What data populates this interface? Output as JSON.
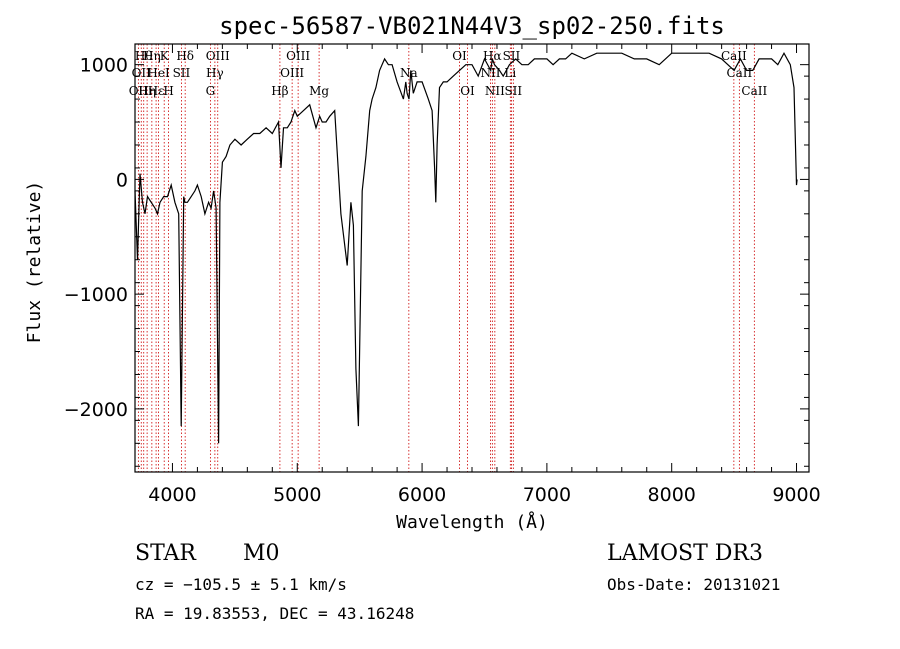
{
  "chart_data": {
    "type": "line",
    "title": "spec-56587-VB021N44V3_sp02-250.fits",
    "xlabel": "Wavelength (Å)",
    "ylabel": "Flux (relative)",
    "xlim": [
      3700,
      9100
    ],
    "ylim": [
      -2550,
      1180
    ],
    "xticks": [
      4000,
      5000,
      6000,
      7000,
      8000,
      9000
    ],
    "yticks": [
      -2000,
      -1000,
      0,
      1000
    ],
    "grid": false,
    "series": [
      {
        "name": "flux",
        "x": [
          3700,
          3720,
          3740,
          3760,
          3780,
          3800,
          3830,
          3860,
          3880,
          3900,
          3930,
          3960,
          3990,
          4020,
          4050,
          4070,
          4090,
          4100,
          4120,
          4150,
          4180,
          4200,
          4230,
          4260,
          4290,
          4310,
          4330,
          4350,
          4370,
          4380,
          4400,
          4430,
          4460,
          4500,
          4550,
          4600,
          4650,
          4700,
          4750,
          4800,
          4850,
          4870,
          4890,
          4920,
          4950,
          4980,
          5000,
          5050,
          5100,
          5150,
          5180,
          5200,
          5230,
          5260,
          5300,
          5350,
          5400,
          5430,
          5450,
          5470,
          5490,
          5520,
          5550,
          5580,
          5600,
          5630,
          5660,
          5700,
          5730,
          5760,
          5800,
          5850,
          5870,
          5880,
          5895,
          5910,
          5930,
          5960,
          6000,
          6050,
          6080,
          6100,
          6110,
          6120,
          6140,
          6170,
          6200,
          6250,
          6300,
          6350,
          6400,
          6450,
          6500,
          6550,
          6563,
          6580,
          6620,
          6650,
          6700,
          6750,
          6800,
          6850,
          6900,
          6950,
          7000,
          7050,
          7100,
          7150,
          7200,
          7300,
          7400,
          7500,
          7600,
          7700,
          7800,
          7900,
          8000,
          8100,
          8200,
          8300,
          8400,
          8500,
          8550,
          8600,
          8650,
          8700,
          8750,
          8800,
          8850,
          8900,
          8950,
          8980,
          9000,
          9005
        ],
        "values": [
          -100,
          -700,
          50,
          -200,
          -300,
          -150,
          -200,
          -250,
          -300,
          -200,
          -150,
          -150,
          -50,
          -200,
          -300,
          -2150,
          -150,
          -200,
          -200,
          -150,
          -100,
          -50,
          -150,
          -300,
          -200,
          -250,
          -100,
          -250,
          -2300,
          -200,
          150,
          200,
          300,
          350,
          300,
          350,
          400,
          400,
          450,
          400,
          500,
          100,
          450,
          450,
          500,
          600,
          550,
          600,
          650,
          450,
          550,
          500,
          500,
          550,
          600,
          -300,
          -750,
          -200,
          -400,
          -1650,
          -2150,
          -100,
          200,
          600,
          700,
          800,
          950,
          1050,
          1000,
          1000,
          850,
          700,
          850,
          750,
          700,
          950,
          750,
          850,
          850,
          700,
          600,
          100,
          -200,
          300,
          800,
          850,
          850,
          900,
          950,
          1000,
          1000,
          900,
          1050,
          950,
          1050,
          1000,
          950,
          900,
          1000,
          1050,
          1000,
          1000,
          1050,
          1050,
          1050,
          1000,
          1050,
          1050,
          1100,
          1050,
          1100,
          1100,
          1100,
          1050,
          1050,
          1000,
          1100,
          1100,
          1100,
          1100,
          1050,
          950,
          1050,
          950,
          950,
          1050,
          1050,
          1050,
          1000,
          1100,
          1000,
          800,
          -50,
          0
        ]
      }
    ],
    "lines": [
      {
        "wave": 3727,
        "row": 2,
        "label": "OII"
      },
      {
        "wave": 3750,
        "row": 1,
        "label": "OII"
      },
      {
        "wave": 3770,
        "row": 0,
        "label": "Hθ"
      },
      {
        "wave": 3797,
        "row": 2,
        "label": "Hη"
      },
      {
        "wave": 3835,
        "row": 0,
        "label": "Hη"
      },
      {
        "wave": 3869,
        "row": 2,
        "label": "Hε"
      },
      {
        "wave": 3889,
        "row": 1,
        "label": "HeI"
      },
      {
        "wave": 3934,
        "row": 0,
        "label": "K"
      },
      {
        "wave": 3969,
        "row": 2,
        "label": "H"
      },
      {
        "wave": 4072,
        "row": 1,
        "label": "SII"
      },
      {
        "wave": 4102,
        "row": 0,
        "label": "Hδ"
      },
      {
        "wave": 4304,
        "row": 2,
        "label": "G"
      },
      {
        "wave": 4340,
        "row": 1,
        "label": "Hγ"
      },
      {
        "wave": 4363,
        "row": 0,
        "label": "OIII"
      },
      {
        "wave": 4861,
        "row": 2,
        "label": "Hβ"
      },
      {
        "wave": 4959,
        "row": 1,
        "label": "OIII"
      },
      {
        "wave": 5007,
        "row": 0,
        "label": "OIII"
      },
      {
        "wave": 5175,
        "row": 2,
        "label": "Mg"
      },
      {
        "wave": 5894,
        "row": 1,
        "label": "Na"
      },
      {
        "wave": 6300,
        "row": 0,
        "label": "OI"
      },
      {
        "wave": 6364,
        "row": 2,
        "label": "OI"
      },
      {
        "wave": 6548,
        "row": 1,
        "label": "NII"
      },
      {
        "wave": 6563,
        "row": 0,
        "label": "Hα"
      },
      {
        "wave": 6583,
        "row": 2,
        "label": "NII"
      },
      {
        "wave": 6707,
        "row": 1,
        "label": "Li"
      },
      {
        "wave": 6716,
        "row": 0,
        "label": "SII"
      },
      {
        "wave": 6731,
        "row": 2,
        "label": "SII"
      },
      {
        "wave": 8498,
        "row": 0,
        "label": "CaII"
      },
      {
        "wave": 8542,
        "row": 1,
        "label": "CaII"
      },
      {
        "wave": 8662,
        "row": 2,
        "label": "CaII"
      }
    ]
  },
  "info": {
    "object_class": "STAR",
    "subclass": "M0",
    "survey": "LAMOST DR3",
    "redshift_text": "cz = −105.5 ± 5.1 km/s",
    "obs_date": "Obs-Date: 20131021",
    "coords_text": "RA =  19.83553, DEC =  43.16248"
  },
  "colors": {
    "spectrum": "#000000",
    "line_marker": "#cc0000",
    "axes": "#000000"
  }
}
